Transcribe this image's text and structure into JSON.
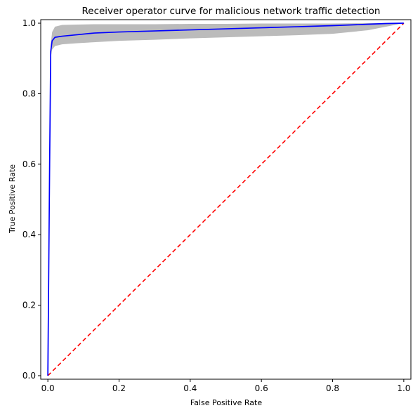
{
  "chart_data": {
    "type": "line",
    "title": "Receiver operator curve for malicious network traffic detection",
    "xlabel": "False Positive Rate",
    "ylabel": "True Positive Rate",
    "xlim": [
      -0.02,
      1.02
    ],
    "ylim": [
      -0.01,
      1.01
    ],
    "xticks": [
      "0.0",
      "0.2",
      "0.4",
      "0.6",
      "0.8",
      "1.0"
    ],
    "yticks": [
      "0.0",
      "0.2",
      "0.4",
      "0.6",
      "0.8",
      "1.0"
    ],
    "grid": false,
    "legend": false,
    "series": [
      {
        "role": "mean-roc",
        "color": "#0000ff",
        "x": [
          0.0,
          0.005,
          0.008,
          0.012,
          0.02,
          0.04,
          0.08,
          0.13,
          0.2,
          0.3,
          0.4,
          0.5,
          0.6,
          0.7,
          0.8,
          0.9,
          0.95,
          1.0
        ],
        "y": [
          0.0,
          0.6,
          0.92,
          0.95,
          0.96,
          0.963,
          0.967,
          0.972,
          0.975,
          0.978,
          0.981,
          0.984,
          0.987,
          0.99,
          0.993,
          0.997,
          0.999,
          1.0
        ]
      },
      {
        "role": "chance-line",
        "color": "#ff0000",
        "style": "dashed",
        "x": [
          0.0,
          1.0
        ],
        "y": [
          0.0,
          1.0
        ]
      }
    ],
    "band": {
      "role": "std-band",
      "color": "#aaaaaa",
      "x": [
        0.008,
        0.012,
        0.02,
        0.04,
        0.08,
        0.13,
        0.2,
        0.3,
        0.4,
        0.5,
        0.6,
        0.7,
        0.8,
        0.9,
        0.95,
        1.0
      ],
      "upper": [
        0.94,
        0.975,
        0.99,
        0.995,
        0.996,
        0.997,
        0.997,
        0.997,
        0.998,
        0.998,
        0.999,
        0.999,
        0.999,
        1.0,
        1.0,
        1.0
      ],
      "lower": [
        0.9,
        0.925,
        0.935,
        0.94,
        0.943,
        0.946,
        0.95,
        0.953,
        0.957,
        0.96,
        0.963,
        0.966,
        0.97,
        0.98,
        0.99,
        1.0
      ]
    }
  }
}
